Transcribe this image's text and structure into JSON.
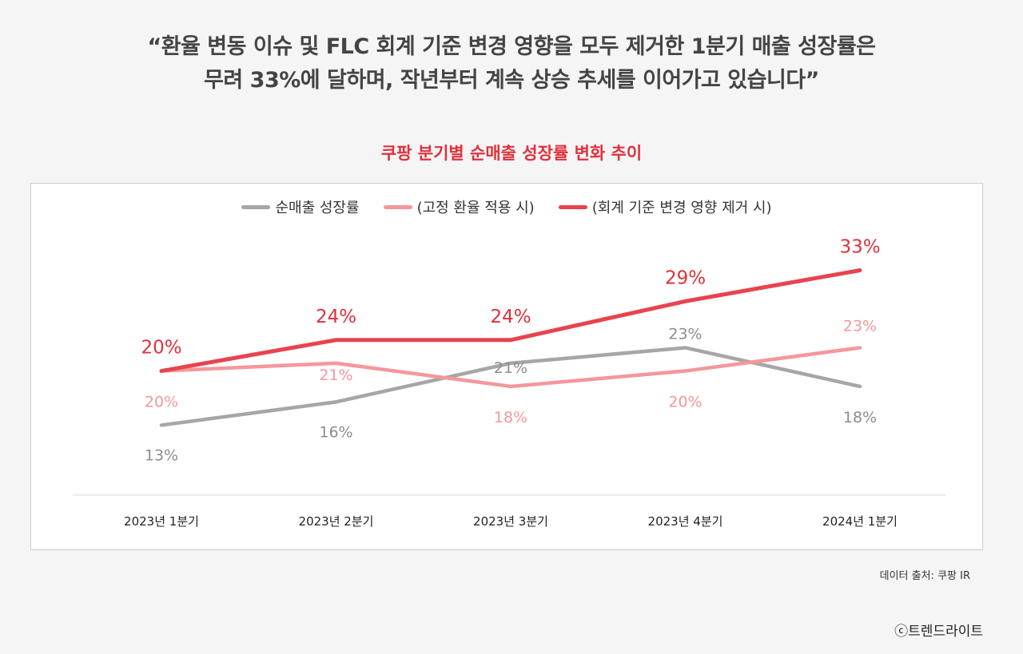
{
  "quote": {
    "line1": "“환율 변동 이슈 및 FLC 회계 기준 변경 영향을 모두 제거한 1분기 매출 성장률은",
    "line2": "무려 33%에 달하며, 작년부터 계속 상승 추세를 이어가고 있습니다”"
  },
  "source": "데이터 출처: 쿠팡 IR",
  "credit": "ⓒ트렌드라이트",
  "chart_data": {
    "type": "line",
    "title": "쿠팡 분기별 순매출 성장률 변화 추이",
    "categories": [
      "2023년 1분기",
      "2023년 2분기",
      "2023년 3분기",
      "2023년 4분기",
      "2024년 1분기"
    ],
    "series": [
      {
        "name": "순매출 성장률",
        "values": [
          13,
          16,
          21,
          23,
          18
        ],
        "color": "#a6a6a6",
        "labels": [
          "13%",
          "16%",
          "21%",
          "23%",
          "18%"
        ]
      },
      {
        "name": "(고정 환율 적용 시)",
        "values": [
          20,
          21,
          18,
          20,
          23
        ],
        "color": "#f4979c",
        "labels": [
          "20%",
          "21%",
          "18%",
          "20%",
          "23%"
        ]
      },
      {
        "name": "(회계 기준 변경 영향 제거 시)",
        "values": [
          20,
          24,
          24,
          29,
          33
        ],
        "color": "#e8434e",
        "labels": [
          "20%",
          "24%",
          "24%",
          "29%",
          "33%"
        ]
      }
    ],
    "ylim": [
      5,
      38
    ],
    "grid": false,
    "legend": "top"
  }
}
